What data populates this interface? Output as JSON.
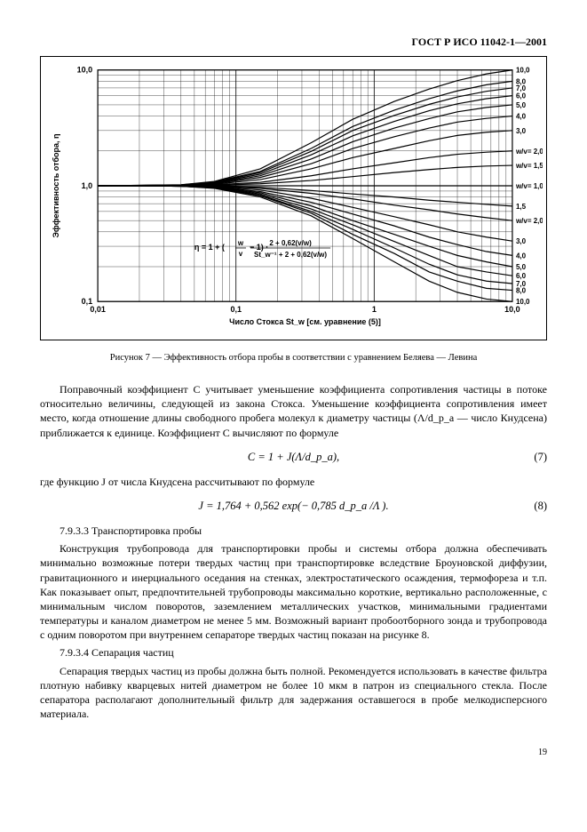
{
  "header": {
    "standard": "ГОСТ Р ИСО 11042-1—2001"
  },
  "chart": {
    "type": "line",
    "xlim": [
      0.01,
      10.0
    ],
    "ylim": [
      0.1,
      10.0
    ],
    "x_scale": "log",
    "y_scale": "log",
    "x_ticks": [
      0.01,
      0.1,
      1,
      10
    ],
    "x_tick_labels": [
      "0,01",
      "0,1",
      "1",
      "10,0"
    ],
    "y_ticks": [
      0.1,
      1,
      10
    ],
    "y_tick_labels": [
      "0,1",
      "1,0",
      "10,0"
    ],
    "xlabel": "Число Стокса St_w [см. уравнение (5)]",
    "ylabel": "Эффективность отбора, η",
    "formula_text": "η = 1 + (w/v − 1) · (2 + 0,62(v/w)) / (St_w^−1 + 2 + 0,62(v/w))",
    "font_size": 9,
    "label_fontsize": 10,
    "background_color": "#ffffff",
    "line_color": "#000000",
    "grid_color": "#000000",
    "grid_width": 0.35,
    "series": [
      {
        "ratio": 0.1,
        "ys": [
          1.0,
          0.999,
          0.99,
          0.95,
          0.8,
          0.55,
          0.35,
          0.22,
          0.15,
          0.12,
          0.105,
          0.1
        ],
        "label_right": "10,0"
      },
      {
        "ratio": 0.125,
        "ys": [
          1.0,
          0.999,
          0.99,
          0.955,
          0.82,
          0.58,
          0.38,
          0.26,
          0.18,
          0.15,
          0.13,
          0.125
        ],
        "label_right": "8,0"
      },
      {
        "ratio": 0.143,
        "ys": [
          1.0,
          0.999,
          0.99,
          0.96,
          0.83,
          0.6,
          0.42,
          0.29,
          0.21,
          0.17,
          0.15,
          0.143
        ],
        "label_right": "7,0"
      },
      {
        "ratio": 0.167,
        "ys": [
          1.0,
          0.999,
          0.99,
          0.965,
          0.85,
          0.63,
          0.46,
          0.33,
          0.25,
          0.2,
          0.18,
          0.167
        ],
        "label_right": "6,0"
      },
      {
        "ratio": 0.2,
        "ys": [
          1.0,
          0.999,
          0.99,
          0.97,
          0.87,
          0.67,
          0.5,
          0.38,
          0.3,
          0.25,
          0.22,
          0.2
        ],
        "label_right": "5,0"
      },
      {
        "ratio": 0.25,
        "ys": [
          1.0,
          0.999,
          0.992,
          0.975,
          0.89,
          0.72,
          0.57,
          0.45,
          0.36,
          0.31,
          0.27,
          0.25
        ],
        "label_right": "4,0"
      },
      {
        "ratio": 0.333,
        "ys": [
          1.0,
          0.999,
          0.994,
          0.98,
          0.92,
          0.78,
          0.65,
          0.54,
          0.46,
          0.4,
          0.36,
          0.333
        ],
        "label_right": "3,0"
      },
      {
        "ratio": 0.5,
        "ys": [
          1.0,
          0.999,
          0.996,
          0.985,
          0.95,
          0.86,
          0.77,
          0.68,
          0.62,
          0.57,
          0.53,
          0.5
        ],
        "label_right": "w/v= 2,0"
      },
      {
        "ratio": 0.667,
        "ys": [
          1.0,
          0.999,
          0.997,
          0.99,
          0.97,
          0.91,
          0.85,
          0.8,
          0.75,
          0.72,
          0.69,
          0.667
        ],
        "label_right": "1,5"
      },
      {
        "ratio": 1.0,
        "ys": [
          1.0,
          1.0,
          1.0,
          1.0,
          1.0,
          1.0,
          1.0,
          1.0,
          1.0,
          1.0,
          1.0,
          1.0
        ],
        "label_right": "w/v= 1,0"
      },
      {
        "ratio": 1.5,
        "ys": [
          1.0,
          1.001,
          1.003,
          1.01,
          1.04,
          1.11,
          1.2,
          1.3,
          1.38,
          1.44,
          1.48,
          1.5
        ],
        "label_right": "w/v= 1,5"
      },
      {
        "ratio": 2.0,
        "ys": [
          1.0,
          1.002,
          1.005,
          1.02,
          1.07,
          1.22,
          1.4,
          1.58,
          1.75,
          1.87,
          1.95,
          2.0
        ],
        "label_right": "w/v= 2,0"
      },
      {
        "ratio": 3.0,
        "ys": [
          1.0,
          1.003,
          1.008,
          1.03,
          1.13,
          1.4,
          1.75,
          2.1,
          2.45,
          2.72,
          2.9,
          3.0
        ],
        "label_right": "3,0"
      },
      {
        "ratio": 4.0,
        "ys": [
          1.0,
          1.004,
          1.01,
          1.04,
          1.18,
          1.55,
          2.1,
          2.65,
          3.15,
          3.55,
          3.82,
          4.0
        ],
        "label_right": "4,0"
      },
      {
        "ratio": 5.0,
        "ys": [
          1.0,
          1.005,
          1.012,
          1.05,
          1.22,
          1.7,
          2.4,
          3.15,
          3.8,
          4.35,
          4.75,
          5.0
        ],
        "label_right": "5,0"
      },
      {
        "ratio": 6.0,
        "ys": [
          1.0,
          1.006,
          1.014,
          1.06,
          1.26,
          1.85,
          2.7,
          3.6,
          4.45,
          5.1,
          5.65,
          6.0
        ],
        "label_right": "6,0"
      },
      {
        "ratio": 7.0,
        "ys": [
          1.0,
          1.007,
          1.016,
          1.07,
          1.3,
          1.98,
          3.0,
          4.05,
          5.05,
          5.85,
          6.55,
          7.0
        ],
        "label_right": "7,0"
      },
      {
        "ratio": 8.0,
        "ys": [
          1.0,
          1.008,
          1.018,
          1.08,
          1.33,
          2.1,
          3.25,
          4.5,
          5.65,
          6.6,
          7.45,
          8.0
        ],
        "label_right": "8,0"
      },
      {
        "ratio": 10.0,
        "ys": [
          1.0,
          1.009,
          1.02,
          1.09,
          1.4,
          2.35,
          3.75,
          5.35,
          6.85,
          8.1,
          9.25,
          10.0
        ],
        "label_right": "10,0"
      }
    ],
    "xs_index": [
      0.01,
      0.02,
      0.04,
      0.07,
      0.15,
      0.35,
      0.7,
      1.4,
      2.5,
      4.0,
      6.5,
      10.0
    ]
  },
  "caption": "Рисунок 7 — Эффективность отбора пробы в соответствии с уравнением Беляева — Левина",
  "body": {
    "p1": "Поправочный коэффициент C учитывает уменьшение коэффициента сопротивления частицы в потоке относительно величины, следующей из закона Стокса. Уменьшение коэффициента сопротивления имеет место, когда отношение длины свободного пробега молекул к диаметру частицы (Λ/d_p_a — число Кнудсена) приближается к единице. Коэффициент C вычисляют по формуле",
    "f7": "C = 1 + J(Λ/d_p_a),",
    "f7n": "(7)",
    "p2": "где функцию J от числа Кнудсена рассчитывают по формуле",
    "f8": "J = 1,764 + 0,562 exp(− 0,785 d_p_a /Λ ).",
    "f8n": "(8)",
    "h7933": "7.9.3.3 Транспортировка пробы",
    "p3": "Конструкция трубопровода для транспортировки пробы и системы отбора должна обеспечивать минимально возможные потери твердых частиц при транспортировке вследствие Броуновской диффузии, гравитационного и инерциального оседания на стенках, электростатического осаждения, термофореза и т.п. Как показывает опыт, предпочтительней трубопроводы максимально короткие, вертикально расположенные, с минимальным числом поворотов, заземлением металлических участков, минимальными градиентами температуры и каналом диаметром не менее 5 мм. Возможный вариант пробоотборного зонда и трубопровода с одним поворотом при внутреннем сепараторе твердых частиц показан на рисунке 8.",
    "h7934": "7.9.3.4 Сепарация частиц",
    "p4": "Сепарация твердых частиц из пробы должна быть полной. Рекомендуется использовать в качестве фильтра плотную набивку кварцевых нитей диаметром не более 10 мкм в патрон из специального стекла. После сепаратора располагают дополнительный фильтр для задержания оставшегося в пробе мелкодисперсного материала."
  },
  "page_num": "19"
}
